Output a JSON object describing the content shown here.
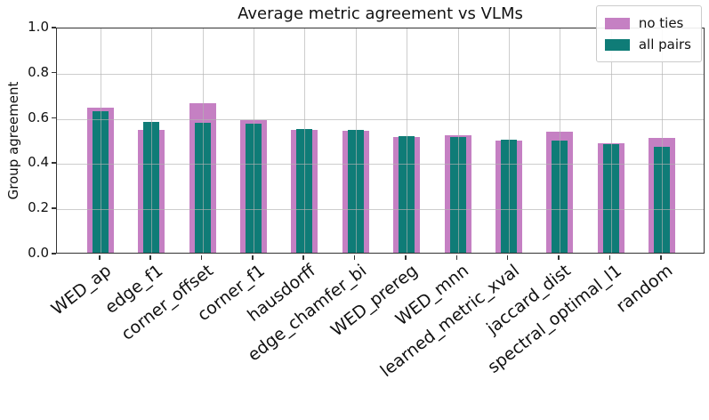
{
  "chart_data": {
    "type": "bar",
    "title": "Average metric agreement vs VLMs",
    "xlabel": "",
    "ylabel": "Group agreement",
    "ylim": [
      0.0,
      1.0
    ],
    "yticks": [
      0.0,
      0.2,
      0.4,
      0.6,
      0.8,
      1.0
    ],
    "ytick_labels": [
      "0.0",
      "0.2",
      "0.4",
      "0.6",
      "0.8",
      "1.0"
    ],
    "grid": true,
    "grid_over_bars": true,
    "legend_position": "upper right",
    "categories": [
      "WED_ap",
      "edge_f1",
      "corner_offset",
      "corner_f1",
      "hausdorff",
      "edge_chamfer_bi",
      "WED_prereg",
      "WED_mnn",
      "learned_metric_xval",
      "jaccard_dist",
      "spectral_optimal_l1",
      "random"
    ],
    "series": [
      {
        "name": "no ties",
        "color": "#c580c3",
        "style": "wide",
        "values": [
          0.64,
          0.545,
          0.662,
          0.585,
          0.545,
          0.54,
          0.51,
          0.52,
          0.495,
          0.535,
          0.483,
          0.507
        ]
      },
      {
        "name": "all pairs",
        "color": "#0f7c77",
        "style": "narrow",
        "values": [
          0.625,
          0.578,
          0.576,
          0.572,
          0.548,
          0.544,
          0.515,
          0.513,
          0.5,
          0.495,
          0.48,
          0.467
        ]
      }
    ]
  },
  "colors": {
    "no_ties": "#c580c3",
    "all_pairs": "#0f7c77",
    "spine": "#333333",
    "gridline": "#b2b2b2",
    "text": "#111111",
    "legend_border": "#cccccc",
    "background": "#ffffff"
  }
}
